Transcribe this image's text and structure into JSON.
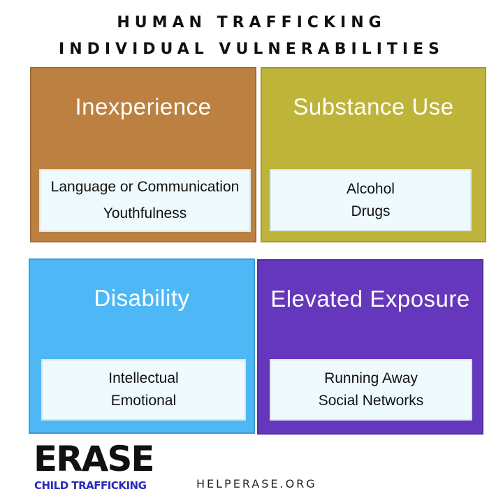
{
  "title": {
    "line1": "HUMAN TRAFFICKING",
    "line2": "INDIVIDUAL VULNERABILITIES"
  },
  "panels": [
    {
      "heading": "Inexperience",
      "color": "#bc8141",
      "items": [
        "Language or Communication",
        "Youthfulness"
      ]
    },
    {
      "heading": "Substance Use",
      "color": "#bfb43a",
      "items": [
        "Alcohol",
        "Drugs"
      ]
    },
    {
      "heading": "Disability",
      "color": "#4db8f5",
      "items": [
        "Intellectual",
        "Emotional"
      ]
    },
    {
      "heading": "Elevated Exposure",
      "color": "#6437bc",
      "items": [
        "Running Away",
        "Social Networks"
      ]
    }
  ],
  "logo": {
    "word": "ERASE",
    "subtitle": "CHILD TRAFFICKING",
    "subtitle_color": "#2a2ab8"
  },
  "footer": {
    "url": "HELPERASE.ORG"
  }
}
